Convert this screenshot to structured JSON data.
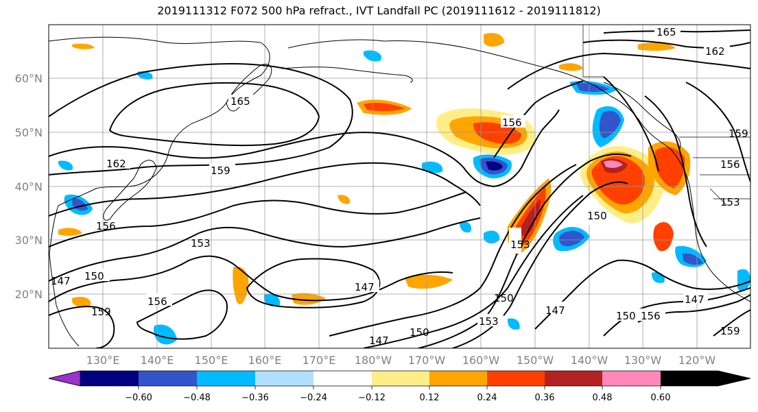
{
  "title": "2019111312 F072 500 hPa refract., IVT Landfall PC (2019111612 - 2019111812)",
  "lat_labels": [
    "60°N",
    "50°N",
    "40°N",
    "30°N",
    "20°N"
  ],
  "lon_labels": [
    "130°E",
    "140°E",
    "150°E",
    "160°E",
    "170°E",
    "180°W",
    "170°W",
    "160°W",
    "150°W",
    "140°W",
    "130°W",
    "120°W"
  ],
  "contour_labels": [
    "165",
    "162",
    "165",
    "162",
    "159",
    "156",
    "156",
    "153",
    "150",
    "147",
    "147",
    "150",
    "156",
    "159",
    "147",
    "150",
    "153",
    "147",
    "150",
    "156",
    "147",
    "153",
    "159",
    "150",
    "153",
    "156",
    "159"
  ],
  "colorbar": {
    "ticks": [
      "−0.60",
      "−0.48",
      "−0.36",
      "−0.24",
      "−0.12",
      "0.12",
      "0.24",
      "0.36",
      "0.48",
      "0.60"
    ],
    "colors": [
      "#9933cc",
      "#000080",
      "#3355cc",
      "#00bbff",
      "#b0e0ff",
      "#ffffff",
      "#ffee88",
      "#ffa500",
      "#ff4000",
      "#b22222",
      "#ff88bb"
    ]
  },
  "colors": {
    "fill_pos_1": "#ffee88",
    "fill_pos_2": "#ffa500",
    "fill_pos_3": "#ff4000",
    "fill_pos_4": "#b22222",
    "fill_pos_5": "#ff88bb",
    "fill_neg_1": "#b0e0ff",
    "fill_neg_2": "#00bbff",
    "fill_neg_3": "#3355cc",
    "fill_neg_4": "#000080"
  }
}
